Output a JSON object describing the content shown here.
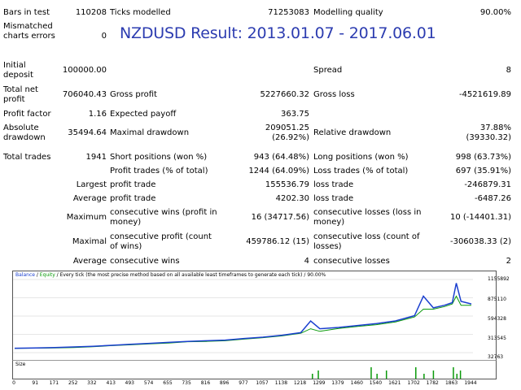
{
  "title": "NZDUSD Result: 2013.01.07 - 2017.06.01",
  "stats": {
    "bars_in_test_label": "Bars in test",
    "bars_in_test": "110208",
    "ticks_modelled_label": "Ticks modelled",
    "ticks_modelled": "71253083",
    "modelling_quality_label": "Modelling quality",
    "modelling_quality": "90.00%",
    "mismatched_label": "Mismatched charts errors",
    "mismatched": "0",
    "initial_deposit_label": "Initial deposit",
    "initial_deposit": "100000.00",
    "spread_label": "Spread",
    "spread": "8",
    "total_net_profit_label": "Total net profit",
    "total_net_profit": "706040.43",
    "gross_profit_label": "Gross profit",
    "gross_profit": "5227660.32",
    "gross_loss_label": "Gross loss",
    "gross_loss": "-4521619.89",
    "profit_factor_label": "Profit factor",
    "profit_factor": "1.16",
    "expected_payoff_label": "Expected payoff",
    "expected_payoff": "363.75",
    "absolute_drawdown_label": "Absolute drawdown",
    "absolute_drawdown": "35494.64",
    "maximal_drawdown_label": "Maximal drawdown",
    "maximal_drawdown_1": "209051.25",
    "maximal_drawdown_2": "(26.92%)",
    "relative_drawdown_label": "Relative drawdown",
    "relative_drawdown_1": "37.88%",
    "relative_drawdown_2": "(39330.32)",
    "total_trades_label": "Total trades",
    "total_trades": "1941",
    "short_positions_label": "Short positions (won %)",
    "short_positions": "943 (64.48%)",
    "long_positions_label": "Long positions (won %)",
    "long_positions": "998 (63.73%)",
    "profit_trades_label": "Profit trades (% of total)",
    "profit_trades": "1244 (64.09%)",
    "loss_trades_label": "Loss trades (% of total)",
    "loss_trades": "697 (35.91%)",
    "largest_label": "Largest",
    "largest_profit_label": "profit trade",
    "largest_profit": "155536.79",
    "largest_loss_label": "loss trade",
    "largest_loss": "-246879.31",
    "average_label": "Average",
    "average_profit_label": "profit trade",
    "average_profit": "4202.30",
    "average_loss_label": "loss trade",
    "average_loss": "-6487.26",
    "maximum_label": "Maximum",
    "max_consec_wins_label": "consecutive wins (profit in money)",
    "max_consec_wins": "16 (34717.56)",
    "max_consec_losses_label": "consecutive losses (loss in money)",
    "max_consec_losses": "10 (-14401.31)",
    "maximal_label": "Maximal",
    "maximal_consec_profit_label": "consecutive profit (count of wins)",
    "maximal_consec_profit": "459786.12 (15)",
    "maximal_consec_loss_label": "consecutive loss (count of losses)",
    "maximal_consec_loss": "-306038.33 (2)",
    "average2_label": "Average",
    "avg_consec_wins_label": "consecutive wins",
    "avg_consec_wins": "4",
    "avg_consec_losses_label": "consecutive losses",
    "avg_consec_losses": "2"
  },
  "chart": {
    "legend_balance": "Balance",
    "legend_sep1": " / ",
    "legend_equity": "Equity",
    "legend_rest": " / Every tick (the most precise method based on all available least timeframes to generate each tick) / 90.00%",
    "size_label": "Size",
    "colors": {
      "balance": "#1a3fcf",
      "equity": "#0a9a0a",
      "size_bars": "#0a9a0a"
    },
    "y_ticks": [
      "1155892",
      "875110",
      "594328",
      "313545",
      "32763"
    ],
    "x_ticks": [
      "0",
      "91",
      "171",
      "252",
      "332",
      "413",
      "493",
      "574",
      "655",
      "735",
      "816",
      "896",
      "977",
      "1057",
      "1138",
      "1218",
      "1299",
      "1379",
      "1460",
      "1540",
      "1621",
      "1702",
      "1782",
      "1863",
      "1944"
    ]
  },
  "chart_data": {
    "type": "line",
    "ylim": [
      32763,
      1155892
    ],
    "xlim": [
      0,
      1944
    ],
    "series": [
      {
        "name": "Balance",
        "x": [
          0,
          91,
          171,
          252,
          332,
          413,
          493,
          574,
          655,
          735,
          816,
          896,
          977,
          1057,
          1138,
          1218,
          1260,
          1299,
          1379,
          1460,
          1540,
          1621,
          1702,
          1740,
          1782,
          1830,
          1863,
          1880,
          1900,
          1944
        ],
        "values": [
          100000,
          105000,
          110000,
          120000,
          130000,
          145000,
          160000,
          175000,
          190000,
          205000,
          215000,
          225000,
          250000,
          270000,
          300000,
          340000,
          520000,
          400000,
          420000,
          450000,
          480000,
          520000,
          600000,
          900000,
          720000,
          760000,
          800000,
          1100000,
          820000,
          780000
        ]
      },
      {
        "name": "Equity",
        "x": [
          0,
          91,
          171,
          252,
          332,
          413,
          493,
          574,
          655,
          735,
          816,
          896,
          977,
          1057,
          1138,
          1218,
          1260,
          1299,
          1379,
          1460,
          1540,
          1621,
          1702,
          1740,
          1782,
          1830,
          1863,
          1880,
          1900,
          1944
        ],
        "values": [
          98000,
          102000,
          105000,
          112000,
          122000,
          140000,
          152000,
          168000,
          180000,
          200000,
          205000,
          215000,
          240000,
          262000,
          290000,
          330000,
          400000,
          360000,
          405000,
          435000,
          462000,
          505000,
          580000,
          700000,
          700000,
          740000,
          780000,
          900000,
          760000,
          760000
        ]
      }
    ],
    "size_bars_x": [
      1265,
      1290,
      1515,
      1540,
      1580,
      1705,
      1740,
      1780,
      1865,
      1880,
      1895
    ]
  }
}
